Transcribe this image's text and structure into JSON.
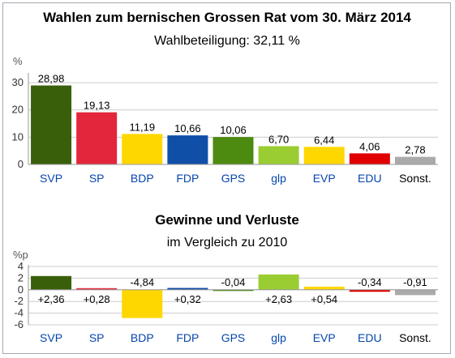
{
  "chart_data": [
    {
      "type": "bar",
      "title": "Wahlen zum bernischen Grossen Rat vom 30. März 2014",
      "subtitle": "Wahlbeteiligung: 32,11 %",
      "ylabel": "%",
      "ylim": [
        0,
        33
      ],
      "yticks": [
        0,
        10,
        20,
        30
      ],
      "categories": [
        "SVP",
        "SP",
        "BDP",
        "FDP",
        "GPS",
        "glp",
        "EVP",
        "EDU",
        "Sonst."
      ],
      "values": [
        28.98,
        19.13,
        11.19,
        10.66,
        10.06,
        6.7,
        6.44,
        4.06,
        2.78
      ],
      "value_labels": [
        "28,98",
        "19,13",
        "11,19",
        "10,66",
        "10,06",
        "6,70",
        "6,44",
        "4,06",
        "2,78"
      ],
      "colors": [
        "#3a5f0b",
        "#e3263b",
        "#ffd700",
        "#0f4fa8",
        "#4d8a10",
        "#9acd32",
        "#ffd700",
        "#e00000",
        "#aaaaaa"
      ],
      "grid": true
    },
    {
      "type": "bar",
      "title": "Gewinne und Verluste",
      "subtitle": "im Vergleich zu 2010",
      "ylabel": "%p",
      "ylim": [
        -6,
        4
      ],
      "yticks": [
        4,
        2,
        0,
        -2,
        -4,
        -6
      ],
      "ytick_labels": [
        "4",
        "2",
        "0",
        "-2",
        "-4",
        "-6"
      ],
      "categories": [
        "SVP",
        "SP",
        "BDP",
        "FDP",
        "GPS",
        "glp",
        "EVP",
        "EDU",
        "Sonst."
      ],
      "values": [
        2.36,
        0.28,
        -4.84,
        0.32,
        -0.04,
        2.63,
        0.54,
        -0.34,
        -0.91
      ],
      "value_labels": [
        "+2,36",
        "+0,28",
        "-4,84",
        "+0,32",
        "-0,04",
        "+2,63",
        "+0,54",
        "-0,34",
        "-0,91"
      ],
      "colors": [
        "#3a5f0b",
        "#e3263b",
        "#ffd700",
        "#0f4fa8",
        "#4d8a10",
        "#9acd32",
        "#ffd700",
        "#e00000",
        "#aaaaaa"
      ],
      "grid": true
    }
  ]
}
